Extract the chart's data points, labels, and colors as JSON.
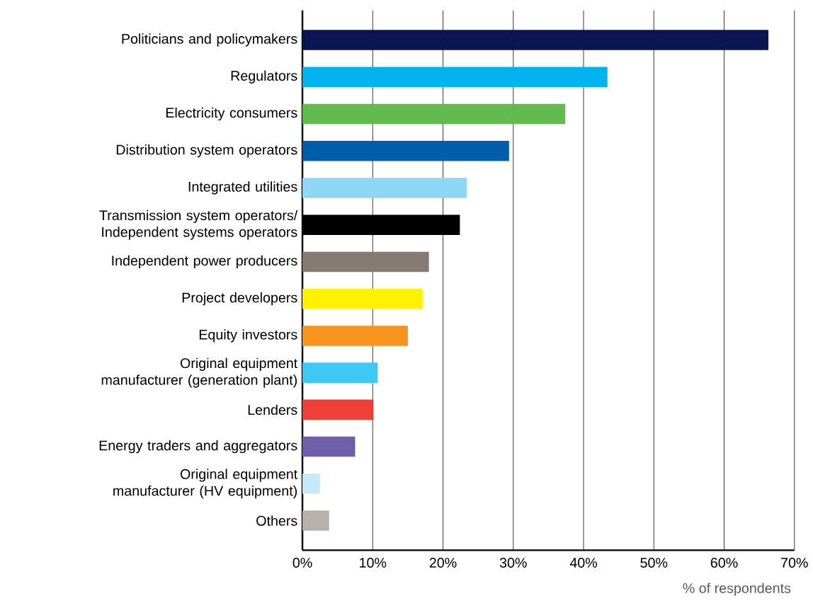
{
  "chart_data": {
    "type": "bar",
    "orientation": "horizontal",
    "xlabel": "% of respondents",
    "categories": [
      "Politicians and policymakers",
      "Regulators",
      "Electricity consumers",
      "Distribution system operators",
      "Integrated utilities",
      "Transmission system operators/ Independent systems operators",
      "Independent power producers",
      "Project developers",
      "Equity investors",
      "Original equipment manufacturer (generation plant)",
      "Lenders",
      "Energy traders and aggregators",
      "Original equipment manufacturer (HV equipment)",
      "Others"
    ],
    "values": [
      66.3,
      43.4,
      37.4,
      29.4,
      23.4,
      22.4,
      18.0,
      17.1,
      15.0,
      10.7,
      10.1,
      7.5,
      2.5,
      3.8
    ],
    "colors": [
      "#0a1450",
      "#00b5ef",
      "#63bb4f",
      "#005daa",
      "#8fd8f5",
      "#000000",
      "#857a74",
      "#fff200",
      "#f7941d",
      "#40c8f4",
      "#ee3f37",
      "#6f5ea8",
      "#c5e9f9",
      "#b8b0ac"
    ],
    "xlim": [
      0,
      70
    ],
    "xticks": [
      {
        "value": 0,
        "label": "0%"
      },
      {
        "value": 10,
        "label": "10%"
      },
      {
        "value": 20,
        "label": "20%"
      },
      {
        "value": 30,
        "label": "30%"
      },
      {
        "value": 40,
        "label": "40%"
      },
      {
        "value": 50,
        "label": "50%"
      },
      {
        "value": 60,
        "label": "60%"
      },
      {
        "value": 70,
        "label": "70%"
      }
    ],
    "grid": "x"
  }
}
